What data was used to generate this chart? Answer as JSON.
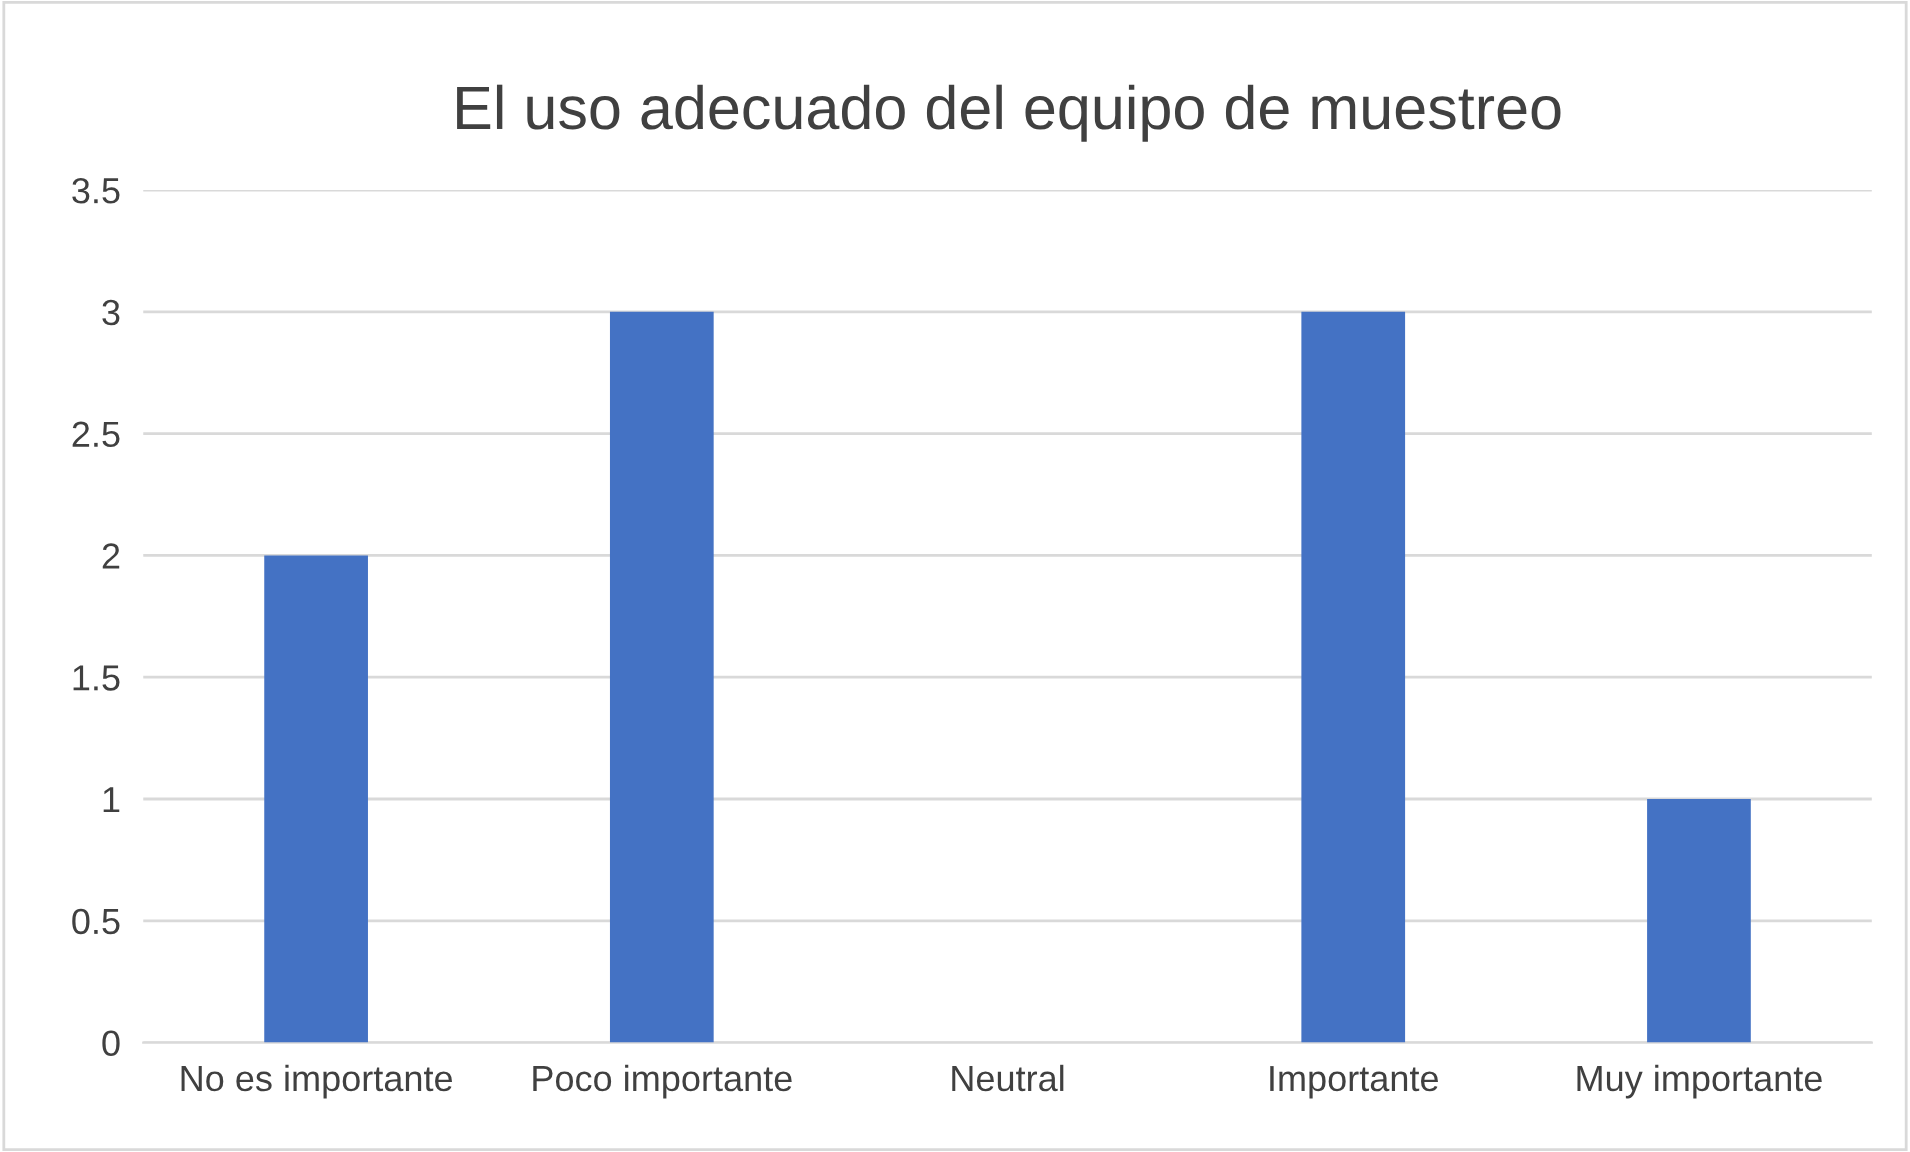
{
  "chart_data": {
    "type": "bar",
    "title": "El uso adecuado del equipo de muestreo",
    "categories": [
      "No es importante",
      "Poco importante",
      "Neutral",
      "Importante",
      "Muy importante"
    ],
    "values": [
      2,
      3,
      0,
      3,
      1
    ],
    "color": "#4472c4",
    "ylim": [
      0,
      3.5
    ],
    "yticks": [
      0,
      0.5,
      1,
      1.5,
      2,
      2.5,
      3,
      3.5
    ],
    "grid": "y"
  }
}
